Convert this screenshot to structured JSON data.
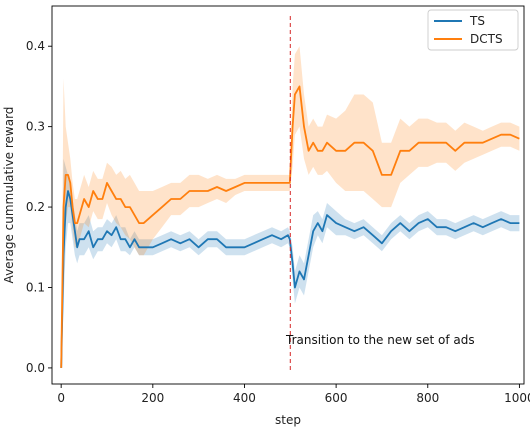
{
  "chart_data": {
    "type": "line",
    "xlabel": "step",
    "ylabel": "Average cummulative reward",
    "xlim": [
      -20,
      1010
    ],
    "ylim": [
      -0.02,
      0.45
    ],
    "xticks": [
      0,
      200,
      400,
      600,
      800,
      1000
    ],
    "yticks": [
      0.0,
      0.1,
      0.2,
      0.3,
      0.4
    ],
    "xtick_labels": [
      "0",
      "200",
      "400",
      "600",
      "800",
      "1000"
    ],
    "ytick_labels": [
      "0.0",
      "0.1",
      "0.2",
      "0.3",
      "0.4"
    ],
    "grid": false,
    "legend": {
      "placement": "top-right",
      "entries": [
        "TS",
        "DCTS"
      ]
    },
    "series": [
      {
        "name": "TS",
        "color": "#1f77b4",
        "x": [
          0,
          5,
          10,
          15,
          20,
          25,
          30,
          35,
          40,
          50,
          60,
          70,
          80,
          90,
          100,
          110,
          120,
          130,
          140,
          150,
          160,
          170,
          180,
          200,
          220,
          240,
          260,
          280,
          300,
          320,
          340,
          360,
          380,
          400,
          420,
          440,
          460,
          480,
          495,
          499,
          505,
          510,
          520,
          530,
          540,
          550,
          560,
          570,
          580,
          600,
          620,
          640,
          660,
          680,
          700,
          720,
          740,
          760,
          780,
          800,
          820,
          840,
          860,
          880,
          900,
          920,
          940,
          960,
          980,
          1000
        ],
        "y": [
          0.0,
          0.14,
          0.2,
          0.22,
          0.21,
          0.19,
          0.17,
          0.15,
          0.16,
          0.16,
          0.17,
          0.15,
          0.16,
          0.16,
          0.17,
          0.165,
          0.175,
          0.16,
          0.16,
          0.15,
          0.16,
          0.15,
          0.15,
          0.15,
          0.155,
          0.16,
          0.155,
          0.16,
          0.15,
          0.16,
          0.16,
          0.15,
          0.15,
          0.15,
          0.155,
          0.16,
          0.165,
          0.16,
          0.165,
          0.16,
          0.13,
          0.1,
          0.12,
          0.11,
          0.14,
          0.17,
          0.18,
          0.17,
          0.19,
          0.18,
          0.175,
          0.17,
          0.175,
          0.165,
          0.155,
          0.17,
          0.18,
          0.17,
          0.18,
          0.185,
          0.175,
          0.175,
          0.17,
          0.175,
          0.18,
          0.175,
          0.18,
          0.185,
          0.18,
          0.18
        ],
        "band_lower": [
          0.0,
          0.08,
          0.15,
          0.18,
          0.18,
          0.16,
          0.14,
          0.13,
          0.14,
          0.14,
          0.15,
          0.135,
          0.145,
          0.145,
          0.155,
          0.15,
          0.16,
          0.145,
          0.145,
          0.14,
          0.15,
          0.14,
          0.14,
          0.14,
          0.145,
          0.15,
          0.145,
          0.15,
          0.14,
          0.15,
          0.15,
          0.14,
          0.14,
          0.14,
          0.145,
          0.15,
          0.155,
          0.15,
          0.155,
          0.15,
          0.11,
          0.08,
          0.1,
          0.09,
          0.12,
          0.15,
          0.165,
          0.155,
          0.175,
          0.165,
          0.165,
          0.16,
          0.165,
          0.155,
          0.145,
          0.16,
          0.17,
          0.16,
          0.17,
          0.175,
          0.165,
          0.165,
          0.16,
          0.165,
          0.17,
          0.165,
          0.17,
          0.175,
          0.17,
          0.17
        ],
        "band_upper": [
          0.0,
          0.26,
          0.25,
          0.24,
          0.23,
          0.21,
          0.19,
          0.17,
          0.18,
          0.18,
          0.19,
          0.17,
          0.175,
          0.175,
          0.185,
          0.18,
          0.19,
          0.175,
          0.175,
          0.16,
          0.17,
          0.16,
          0.16,
          0.16,
          0.165,
          0.17,
          0.165,
          0.17,
          0.16,
          0.17,
          0.17,
          0.16,
          0.16,
          0.16,
          0.165,
          0.17,
          0.175,
          0.17,
          0.175,
          0.17,
          0.15,
          0.12,
          0.14,
          0.13,
          0.16,
          0.19,
          0.195,
          0.185,
          0.205,
          0.195,
          0.185,
          0.18,
          0.185,
          0.175,
          0.165,
          0.18,
          0.19,
          0.18,
          0.19,
          0.195,
          0.185,
          0.185,
          0.18,
          0.185,
          0.19,
          0.185,
          0.19,
          0.195,
          0.19,
          0.19
        ]
      },
      {
        "name": "DCTS",
        "color": "#ff7f0e",
        "x": [
          0,
          5,
          10,
          15,
          20,
          25,
          30,
          35,
          40,
          50,
          60,
          70,
          80,
          90,
          100,
          110,
          120,
          130,
          140,
          150,
          160,
          170,
          180,
          200,
          220,
          240,
          260,
          280,
          300,
          320,
          340,
          360,
          380,
          400,
          420,
          440,
          460,
          480,
          495,
          499,
          505,
          510,
          520,
          530,
          540,
          550,
          560,
          570,
          580,
          600,
          620,
          640,
          660,
          680,
          700,
          720,
          740,
          760,
          780,
          800,
          820,
          840,
          860,
          880,
          900,
          920,
          940,
          960,
          980,
          1000
        ],
        "y": [
          0.0,
          0.2,
          0.24,
          0.24,
          0.23,
          0.2,
          0.18,
          0.18,
          0.19,
          0.21,
          0.2,
          0.22,
          0.21,
          0.21,
          0.23,
          0.22,
          0.21,
          0.21,
          0.2,
          0.2,
          0.19,
          0.18,
          0.18,
          0.19,
          0.2,
          0.21,
          0.21,
          0.22,
          0.22,
          0.22,
          0.225,
          0.22,
          0.225,
          0.23,
          0.23,
          0.23,
          0.23,
          0.23,
          0.23,
          0.23,
          0.3,
          0.34,
          0.35,
          0.3,
          0.27,
          0.28,
          0.27,
          0.27,
          0.28,
          0.27,
          0.27,
          0.28,
          0.28,
          0.27,
          0.24,
          0.24,
          0.27,
          0.27,
          0.28,
          0.28,
          0.28,
          0.28,
          0.27,
          0.28,
          0.28,
          0.28,
          0.285,
          0.29,
          0.29,
          0.285
        ],
        "band_lower": [
          0.0,
          0.1,
          0.18,
          0.2,
          0.2,
          0.17,
          0.15,
          0.15,
          0.16,
          0.18,
          0.175,
          0.195,
          0.185,
          0.185,
          0.205,
          0.19,
          0.18,
          0.175,
          0.165,
          0.16,
          0.15,
          0.14,
          0.14,
          0.16,
          0.175,
          0.19,
          0.19,
          0.2,
          0.2,
          0.205,
          0.21,
          0.205,
          0.215,
          0.22,
          0.22,
          0.22,
          0.22,
          0.22,
          0.22,
          0.22,
          0.25,
          0.29,
          0.3,
          0.26,
          0.24,
          0.25,
          0.24,
          0.24,
          0.245,
          0.23,
          0.22,
          0.22,
          0.22,
          0.21,
          0.2,
          0.2,
          0.23,
          0.24,
          0.25,
          0.25,
          0.255,
          0.255,
          0.245,
          0.255,
          0.26,
          0.265,
          0.27,
          0.275,
          0.275,
          0.27
        ],
        "band_upper": [
          0.0,
          0.36,
          0.3,
          0.28,
          0.26,
          0.23,
          0.21,
          0.21,
          0.22,
          0.24,
          0.225,
          0.245,
          0.235,
          0.235,
          0.255,
          0.25,
          0.24,
          0.245,
          0.235,
          0.24,
          0.23,
          0.22,
          0.22,
          0.22,
          0.225,
          0.23,
          0.23,
          0.24,
          0.24,
          0.235,
          0.24,
          0.235,
          0.235,
          0.24,
          0.24,
          0.24,
          0.24,
          0.24,
          0.24,
          0.24,
          0.35,
          0.39,
          0.4,
          0.34,
          0.3,
          0.31,
          0.3,
          0.3,
          0.315,
          0.31,
          0.32,
          0.34,
          0.34,
          0.33,
          0.28,
          0.28,
          0.31,
          0.3,
          0.31,
          0.31,
          0.305,
          0.305,
          0.295,
          0.305,
          0.3,
          0.295,
          0.3,
          0.305,
          0.305,
          0.3
        ]
      }
    ],
    "annotations": [
      {
        "type": "vline",
        "x": 500,
        "color": "#d62728",
        "style": "dashed"
      },
      {
        "type": "text",
        "text": "Transition to the new set of ads",
        "x": 530,
        "y": 0.03
      }
    ]
  }
}
